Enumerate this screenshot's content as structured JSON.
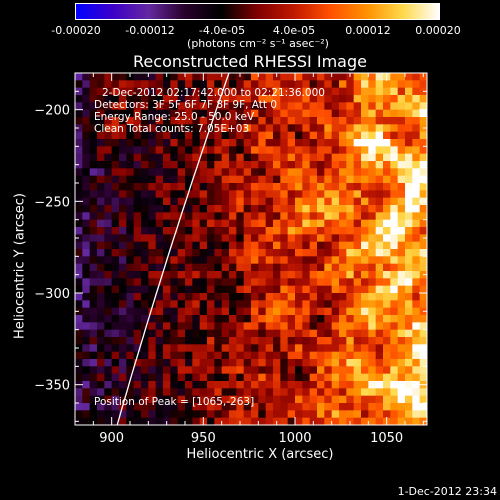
{
  "chart_data": {
    "type": "heatmap",
    "title": "Reconstructed RHESSI Image",
    "xlabel": "Heliocentric X (arcsec)",
    "ylabel": "Heliocentric Y (arcsec)",
    "xlim": [
      880,
      1072
    ],
    "ylim": [
      -372,
      -180
    ],
    "x_ticks": [
      900,
      950,
      1000,
      1050
    ],
    "y_ticks": [
      -200,
      -250,
      -300,
      -350
    ],
    "colorbar": {
      "ticks": [
        "-0.00020",
        "-0.00012",
        "-4.0e-05",
        "4.0e-05",
        "0.00012",
        "0.00020"
      ],
      "tick_values": [
        -0.0002,
        -0.00012,
        -4e-05,
        4e-05,
        0.00012,
        0.0002
      ],
      "range": [
        -0.0002,
        0.0002
      ],
      "units": "(photons cm⁻² s⁻¹ asec⁻²)",
      "colormap": [
        "#0000ff",
        "#3c00c8",
        "#6428a0",
        "#28002a",
        "#000000",
        "#800000",
        "#c01800",
        "#ff5000",
        "#ff9000",
        "#ffd84a",
        "#ffffff"
      ]
    },
    "annotations": [
      "2-Dec-2012 02:17:42.000 to 02:21:36.000",
      "Detectors: 3F 5F 6F 7F 8F 9F, Att 0",
      "Energy Range: 25.0 - 50.0 keV",
      "Clean     Total counts: 7.05E+03"
    ],
    "peak_label": "Position of Peak = [1065,-263]",
    "peak_position": [
      1065,
      -263
    ],
    "grid": false
  },
  "footer": {
    "date": "1-Dec-2012 23:34"
  }
}
